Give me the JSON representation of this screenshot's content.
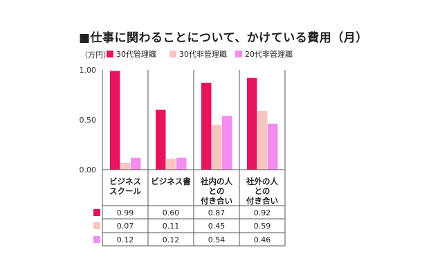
{
  "title": "■仕事に関わることについて、かけている費用（月）",
  "unit": "（万円）",
  "colors": {
    "series0": "#e8135f",
    "series1": "#f7c6c0",
    "series2": "#f58cf0"
  },
  "chart_data": {
    "type": "bar",
    "title": "■仕事に関わることについて、かけている費用（月）",
    "ylabel": "（万円）",
    "ylim": [
      0,
      1.0
    ],
    "yticks": [
      "0.00",
      "0.50",
      "1.00"
    ],
    "categories": [
      [
        "ビジネス",
        "スクール"
      ],
      [
        "ビジネス書"
      ],
      [
        "社内の人",
        "との",
        "付き合い"
      ],
      [
        "社外の人",
        "との",
        "付き合い"
      ]
    ],
    "series": [
      {
        "name": "30代管理職",
        "values": [
          0.99,
          0.6,
          0.87,
          0.92
        ],
        "labels": [
          "0.99",
          "0.60",
          "0.87",
          "0.92"
        ]
      },
      {
        "name": "30代非管理職",
        "values": [
          0.07,
          0.11,
          0.45,
          0.59
        ],
        "labels": [
          "0.07",
          "0.11",
          "0.45",
          "0.59"
        ]
      },
      {
        "name": "20代非管理職",
        "values": [
          0.12,
          0.12,
          0.54,
          0.46
        ],
        "labels": [
          "0.12",
          "0.12",
          "0.54",
          "0.46"
        ]
      }
    ],
    "legend": "top",
    "grid": false,
    "data_table": true
  }
}
